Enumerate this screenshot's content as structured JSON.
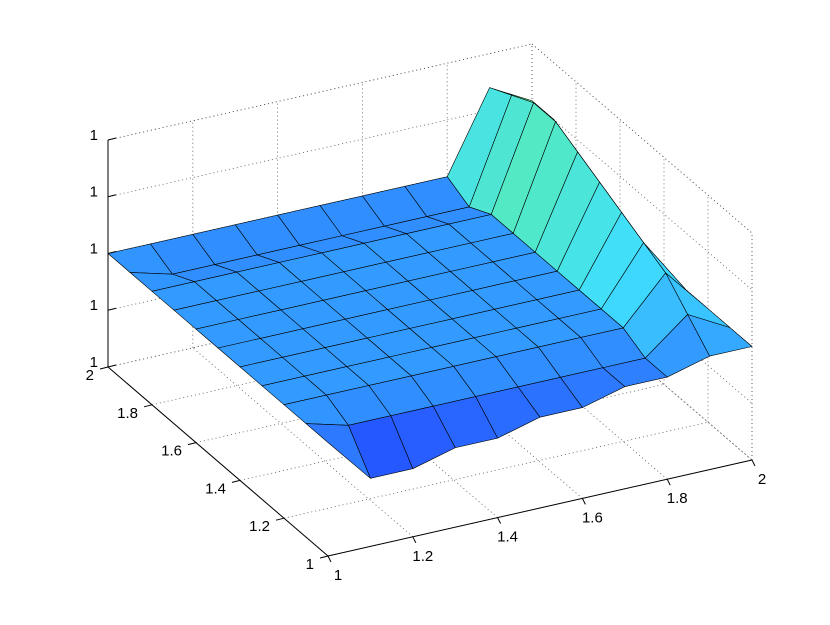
{
  "chart_data": {
    "type": "surface",
    "x": [
      1,
      1.1,
      1.2,
      1.3,
      1.4,
      1.5,
      1.6,
      1.7,
      1.8,
      1.9,
      2
    ],
    "y": [
      1,
      1.1,
      1.2,
      1.3,
      1.4,
      1.5,
      1.6,
      1.7,
      1.8,
      1.9,
      2
    ],
    "z": [
      [
        1,
        0.99996,
        0.99996,
        0.99997,
        0.99997,
        0.99998,
        0.99998,
        0.99999,
        0.99999,
        1,
        1
      ],
      [
        1,
        0.99999,
        0.99999,
        0.99999,
        0.99999,
        0.99999,
        0.99999,
        0.99999,
        0.99999,
        1.00002,
        1
      ],
      [
        1,
        1,
        1,
        1,
        1,
        1,
        1,
        1,
        1,
        1.00004,
        1
      ],
      [
        1,
        1,
        1,
        1,
        1,
        1,
        1,
        1,
        1,
        1.00005,
        1
      ],
      [
        1,
        1,
        1,
        1,
        1,
        1,
        1,
        1,
        1,
        1.00006,
        1
      ],
      [
        1,
        1,
        1,
        1,
        1,
        1,
        1,
        1,
        1,
        1.00007,
        1.00001
      ],
      [
        1,
        1,
        1,
        1,
        1,
        1,
        1,
        1,
        1,
        1.00008,
        1.00002
      ],
      [
        1,
        1,
        1,
        1,
        1,
        1,
        1,
        1,
        1,
        1.00009,
        1.00003
      ],
      [
        1,
        1,
        1,
        1,
        1,
        1,
        1,
        1,
        1,
        1.00009,
        1.00004
      ],
      [
        1,
        0.99999,
        0.99999,
        0.99999,
        0.99999,
        0.99999,
        0.99999,
        0.99999,
        0.99999,
        1.00008,
        1.00005
      ],
      [
        1,
        1,
        1,
        1,
        1,
        1,
        1,
        1,
        1,
        1.00007,
        1.00005
      ]
    ],
    "colormap": [
      "#1f2fff",
      "#3fdfff",
      "#7fff3f"
    ],
    "xlim": [
      1,
      2
    ],
    "ylim": [
      1,
      2
    ],
    "zlim": [
      0.9999,
      1.0001
    ],
    "xticks": [
      1,
      1.2,
      1.4,
      1.6,
      1.8,
      2
    ],
    "yticks": [
      1,
      1.2,
      1.4,
      1.6,
      1.8,
      2
    ],
    "zticks": [
      {
        "value": 0.9999,
        "label": "1"
      },
      {
        "value": 0.99995,
        "label": "1"
      },
      {
        "value": 1,
        "label": "1"
      },
      {
        "value": 1.00005,
        "label": "1"
      },
      {
        "value": 1.0001,
        "label": "1"
      }
    ],
    "grid": true
  }
}
